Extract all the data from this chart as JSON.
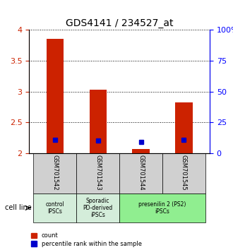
{
  "title": "GDS4141 / 234527_at",
  "samples": [
    "GSM701542",
    "GSM701543",
    "GSM701544",
    "GSM701545"
  ],
  "red_values": [
    3.86,
    3.03,
    2.07,
    2.83
  ],
  "blue_values": [
    2.22,
    2.2,
    2.18,
    2.22
  ],
  "ylim_left": [
    2.0,
    4.0
  ],
  "ylim_right": [
    0,
    100
  ],
  "yticks_left": [
    2.0,
    2.5,
    3.0,
    3.5,
    4.0
  ],
  "yticks_right": [
    0,
    25,
    50,
    75,
    100
  ],
  "ytick_labels_left": [
    "2",
    "2.5",
    "3",
    "3.5",
    "4"
  ],
  "ytick_labels_right": [
    "0",
    "25",
    "50",
    "75",
    "100%"
  ],
  "groups": [
    {
      "label": "control\nIPSCs",
      "start": 0,
      "end": 1,
      "color": "#d4edda"
    },
    {
      "label": "Sporadic\nPD-derived\niPSCs",
      "start": 1,
      "end": 2,
      "color": "#d4edda"
    },
    {
      "label": "presenilin 2 (PS2)\niPSCs",
      "start": 2,
      "end": 4,
      "color": "#90EE90"
    }
  ],
  "bar_width": 0.4,
  "red_color": "#cc2200",
  "blue_color": "#0000cc",
  "grid_color": "#000000",
  "box_bg": "#d0d0d0",
  "legend_red": "count",
  "legend_blue": "percentile rank within the sample",
  "cell_line_label": "cell line"
}
